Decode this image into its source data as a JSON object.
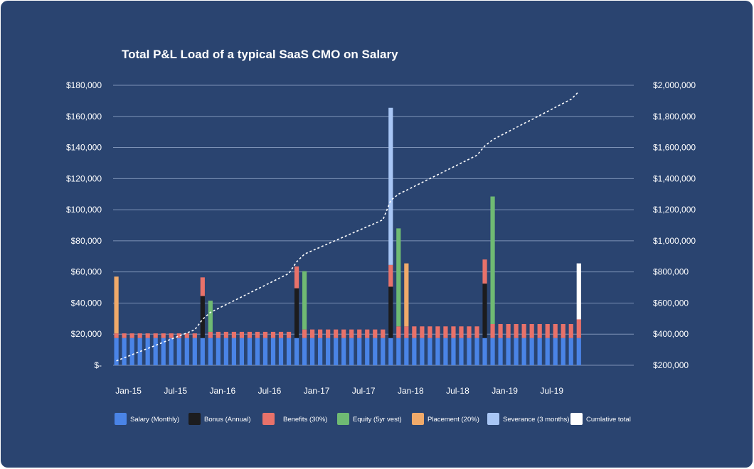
{
  "chart_data": {
    "type": "bar",
    "stacked": true,
    "title": "Total P&L Load of a typical SaaS CMO on Salary",
    "y_left": {
      "min": 0,
      "max": 180000,
      "tick_labels": [
        "$-",
        "$20,000",
        "$40,000",
        "$60,000",
        "$80,000",
        "$100,000",
        "$120,000",
        "$140,000",
        "$160,000",
        "$180,000"
      ]
    },
    "y_right": {
      "min": 200000,
      "max": 2000000,
      "tick_labels": [
        "$200,000",
        "$400,000",
        "$600,000",
        "$800,000",
        "$1,000,000",
        "$1,200,000",
        "$1,400,000",
        "$1,600,000",
        "$1,800,000",
        "$2,000,000"
      ]
    },
    "x_tick_labels": [
      "Jan-15",
      "Jul-15",
      "Jan-16",
      "Jul-16",
      "Jan-17",
      "Jul-17",
      "Jan-18",
      "Jul-18",
      "Jan-19",
      "Jul-19"
    ],
    "months": [
      "2015-01",
      "2015-02",
      "2015-03",
      "2015-04",
      "2015-05",
      "2015-06",
      "2015-07",
      "2015-08",
      "2015-09",
      "2015-10",
      "2015-11",
      "2015-12",
      "2016-01",
      "2016-02",
      "2016-03",
      "2016-04",
      "2016-05",
      "2016-06",
      "2016-07",
      "2016-08",
      "2016-09",
      "2016-10",
      "2016-11",
      "2016-12",
      "2017-01",
      "2017-02",
      "2017-03",
      "2017-04",
      "2017-05",
      "2017-06",
      "2017-07",
      "2017-08",
      "2017-09",
      "2017-10",
      "2017-11",
      "2017-12",
      "2018-01",
      "2018-02",
      "2018-03",
      "2018-04",
      "2018-05",
      "2018-06",
      "2018-07",
      "2018-08",
      "2018-09",
      "2018-10",
      "2018-11",
      "2018-12",
      "2019-01",
      "2019-02",
      "2019-03",
      "2019-04",
      "2019-05",
      "2019-06",
      "2019-07",
      "2019-08",
      "2019-09",
      "2019-10",
      "2019-11",
      "2019-12"
    ],
    "series": [
      {
        "name": "Salary (Monthly)",
        "color": "#4a84e6",
        "values": [
          17500,
          17500,
          17500,
          17500,
          17500,
          17500,
          17500,
          17500,
          17500,
          17500,
          17500,
          17500,
          17500,
          17500,
          17500,
          17500,
          17500,
          17500,
          17500,
          17500,
          17500,
          17500,
          17500,
          17500,
          17500,
          17500,
          17500,
          17500,
          17500,
          17500,
          17500,
          17500,
          17500,
          17500,
          17500,
          17500,
          17500,
          17500,
          17500,
          17500,
          17500,
          17500,
          17500,
          17500,
          17500,
          17500,
          17500,
          17500,
          17500,
          17500,
          17500,
          17500,
          17500,
          17500,
          17500,
          17500,
          17500,
          17500,
          17500,
          17500
        ]
      },
      {
        "name": "Bonus (Annual)",
        "color": "#1c1c1e",
        "values": [
          0,
          0,
          0,
          0,
          0,
          0,
          0,
          0,
          0,
          0,
          0,
          27000,
          0,
          0,
          0,
          0,
          0,
          0,
          0,
          0,
          0,
          0,
          0,
          32000,
          0,
          0,
          0,
          0,
          0,
          0,
          0,
          0,
          0,
          0,
          0,
          33000,
          0,
          0,
          0,
          0,
          0,
          0,
          0,
          0,
          0,
          0,
          0,
          35000,
          0,
          0,
          0,
          0,
          0,
          0,
          0,
          0,
          0,
          0,
          0,
          0
        ]
      },
      {
        "name": "Benefits (30%)",
        "color": "#e8726a",
        "values": [
          3000,
          3000,
          3000,
          3000,
          3000,
          3000,
          3000,
          3000,
          3000,
          3000,
          3000,
          12000,
          4000,
          4000,
          4000,
          4000,
          4000,
          4000,
          4000,
          4000,
          4000,
          4000,
          4000,
          14000,
          5500,
          5500,
          5500,
          5500,
          5500,
          5500,
          5500,
          5500,
          5500,
          5500,
          5500,
          14000,
          7500,
          7500,
          7500,
          7500,
          7500,
          7500,
          7500,
          7500,
          7500,
          7500,
          7500,
          15500,
          9000,
          9000,
          9000,
          9000,
          9000,
          9000,
          9000,
          9000,
          9000,
          9000,
          9000,
          12000
        ]
      },
      {
        "name": "Equity (5yr vest)",
        "color": "#6fba73",
        "values": [
          0,
          0,
          0,
          0,
          0,
          0,
          0,
          0,
          0,
          0,
          0,
          0,
          20000,
          0,
          0,
          0,
          0,
          0,
          0,
          0,
          0,
          0,
          0,
          0,
          37500,
          0,
          0,
          0,
          0,
          0,
          0,
          0,
          0,
          0,
          0,
          0,
          63000,
          0,
          0,
          0,
          0,
          0,
          0,
          0,
          0,
          0,
          0,
          0,
          82000,
          0,
          0,
          0,
          0,
          0,
          0,
          0,
          0,
          0,
          0,
          0
        ]
      },
      {
        "name": "Placement (20%)",
        "color": "#f0aa6a",
        "values": [
          36500,
          0,
          0,
          0,
          0,
          0,
          0,
          0,
          0,
          0,
          0,
          0,
          0,
          0,
          0,
          0,
          0,
          0,
          0,
          0,
          0,
          0,
          0,
          0,
          0,
          0,
          0,
          0,
          0,
          0,
          0,
          0,
          0,
          0,
          0,
          0,
          0,
          40500,
          0,
          0,
          0,
          0,
          0,
          0,
          0,
          0,
          0,
          0,
          0,
          0,
          0,
          0,
          0,
          0,
          0,
          0,
          0,
          0,
          0,
          0
        ]
      },
      {
        "name": "Severance (3 months)",
        "color": "#a8c6f5",
        "values": [
          0,
          0,
          0,
          0,
          0,
          0,
          0,
          0,
          0,
          0,
          0,
          0,
          0,
          0,
          0,
          0,
          0,
          0,
          0,
          0,
          0,
          0,
          0,
          0,
          0,
          0,
          0,
          0,
          0,
          0,
          0,
          0,
          0,
          0,
          0,
          101000,
          0,
          0,
          0,
          0,
          0,
          0,
          0,
          0,
          0,
          0,
          0,
          0,
          0,
          0,
          0,
          0,
          0,
          0,
          0,
          0,
          0,
          0,
          0,
          0
        ]
      },
      {
        "name": "Cumlative total",
        "color": "#ffffff",
        "values": [
          0,
          0,
          0,
          0,
          0,
          0,
          0,
          0,
          0,
          0,
          0,
          0,
          0,
          0,
          0,
          0,
          0,
          0,
          0,
          0,
          0,
          0,
          0,
          0,
          0,
          0,
          0,
          0,
          0,
          0,
          0,
          0,
          0,
          0,
          0,
          0,
          0,
          0,
          0,
          0,
          0,
          0,
          0,
          0,
          0,
          0,
          0,
          0,
          0,
          0,
          0,
          0,
          0,
          0,
          0,
          0,
          0,
          0,
          0,
          36000
        ]
      }
    ],
    "cumulative_line": {
      "axis": "right",
      "style": "dashed",
      "color": "#ffffff",
      "values": [
        228000,
        248000,
        268000,
        288000,
        308000,
        328000,
        348000,
        368000,
        388000,
        408000,
        428000,
        495000,
        540000,
        565000,
        590000,
        615000,
        640000,
        665000,
        690000,
        715000,
        740000,
        765000,
        790000,
        865000,
        915000,
        937000,
        959000,
        981000,
        1003000,
        1025000,
        1047000,
        1069000,
        1091000,
        1113000,
        1135000,
        1260000,
        1300000,
        1325000,
        1350000,
        1375000,
        1400000,
        1425000,
        1450000,
        1475000,
        1500000,
        1525000,
        1550000,
        1610000,
        1650000,
        1676000,
        1702000,
        1728000,
        1754000,
        1780000,
        1806000,
        1832000,
        1858000,
        1884000,
        1910000,
        1960000
      ]
    }
  }
}
